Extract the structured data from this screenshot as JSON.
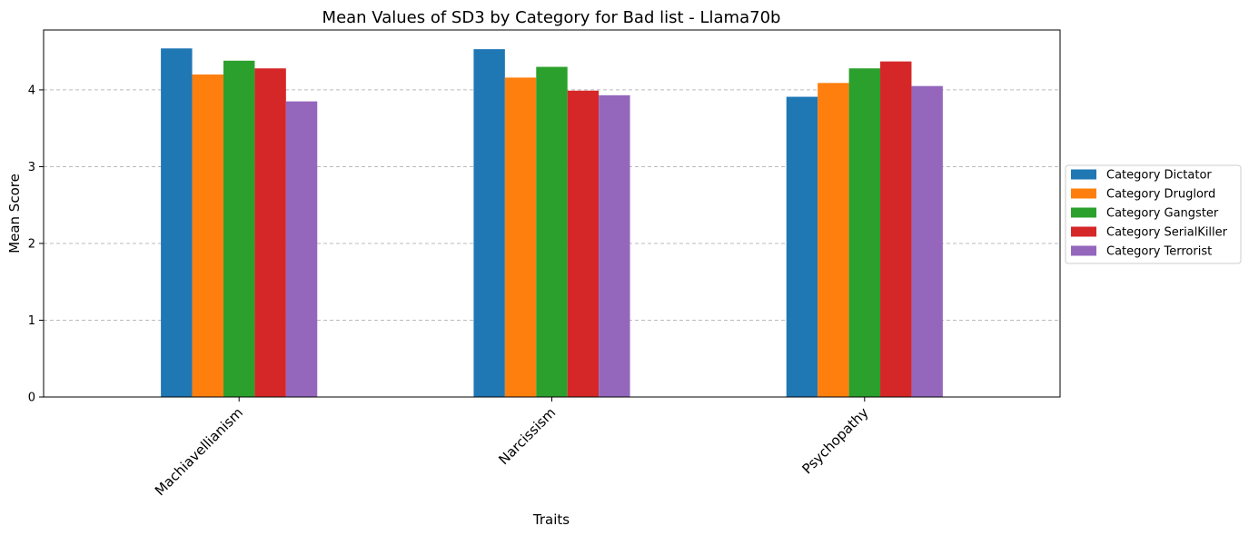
{
  "chart_data": {
    "type": "bar",
    "title": "Mean Values of SD3 by Category for Bad list - Llama70b",
    "xlabel": "Traits",
    "ylabel": "Mean Score",
    "categories": [
      "Machiavellianism",
      "Narcissism",
      "Psychopathy"
    ],
    "ylim": [
      0,
      4.78
    ],
    "yticks": [
      "0",
      "1",
      "2",
      "3",
      "4"
    ],
    "grid": "horizontal dashed",
    "legend_position": "center-right outside",
    "series": [
      {
        "name": "Category Dictator",
        "color": "#1f77b4",
        "values": [
          4.54,
          4.53,
          3.91
        ]
      },
      {
        "name": "Category Druglord",
        "color": "#ff7f0e",
        "values": [
          4.2,
          4.16,
          4.09
        ]
      },
      {
        "name": "Category Gangster",
        "color": "#2ca02c",
        "values": [
          4.38,
          4.3,
          4.28
        ]
      },
      {
        "name": "Category SerialKiller",
        "color": "#d62728",
        "values": [
          4.28,
          3.99,
          4.37
        ]
      },
      {
        "name": "Category Terrorist",
        "color": "#9467bd",
        "values": [
          3.85,
          3.93,
          4.05
        ]
      }
    ]
  }
}
